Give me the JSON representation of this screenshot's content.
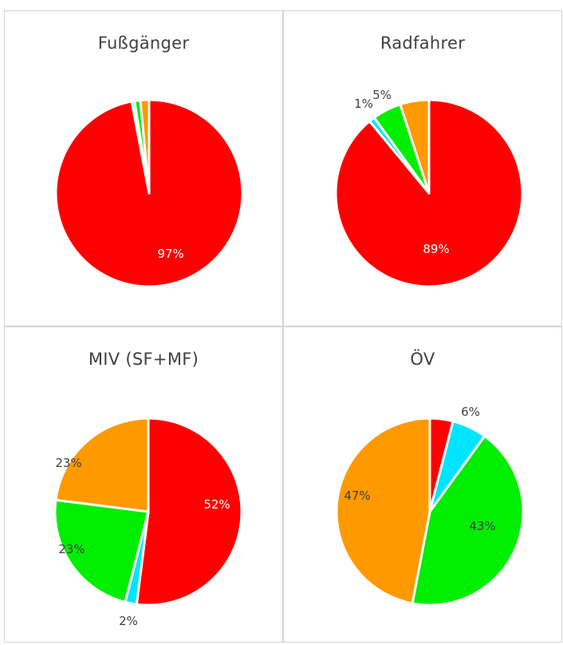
{
  "chart_data": [
    {
      "type": "pie",
      "title": "Fußgänger",
      "slices": [
        {
          "value": 97,
          "color": "#ff0000",
          "label": "97%",
          "label_color": "#ffffff"
        },
        {
          "value": 0.5,
          "color": "#00e5ff",
          "label": "",
          "label_color": "#404040"
        },
        {
          "value": 1,
          "color": "#00ee00",
          "label": "",
          "label_color": "#404040"
        },
        {
          "value": 1.5,
          "color": "#ff9900",
          "label": "",
          "label_color": "#404040"
        }
      ]
    },
    {
      "type": "pie",
      "title": "Radfahrer",
      "slices": [
        {
          "value": 89,
          "color": "#ff0000",
          "label": "89%",
          "label_color": "#ffffff"
        },
        {
          "value": 1,
          "color": "#00e5ff",
          "label": "1%",
          "label_color": "#404040"
        },
        {
          "value": 5,
          "color": "#00ee00",
          "label": "5%",
          "label_color": "#404040"
        },
        {
          "value": 5,
          "color": "#ff9900",
          "label": "",
          "label_color": "#404040"
        }
      ]
    },
    {
      "type": "pie",
      "title": "MIV (SF+MF)",
      "slices": [
        {
          "value": 52,
          "color": "#ff0000",
          "label": "52%",
          "label_color": "#ffffff"
        },
        {
          "value": 2,
          "color": "#00e5ff",
          "label": "2%",
          "label_color": "#404040"
        },
        {
          "value": 23,
          "color": "#00ee00",
          "label": "23%",
          "label_color": "#404040"
        },
        {
          "value": 23,
          "color": "#ff9900",
          "label": "23%",
          "label_color": "#404040"
        }
      ]
    },
    {
      "type": "pie",
      "title": "ÖV",
      "slices": [
        {
          "value": 4,
          "color": "#ff0000",
          "label": "",
          "label_color": "#404040"
        },
        {
          "value": 6,
          "color": "#00e5ff",
          "label": "6%",
          "label_color": "#404040"
        },
        {
          "value": 43,
          "color": "#00ee00",
          "label": "43%",
          "label_color": "#404040"
        },
        {
          "value": 47,
          "color": "#ff9900",
          "label": "47%",
          "label_color": "#404040"
        }
      ]
    }
  ]
}
